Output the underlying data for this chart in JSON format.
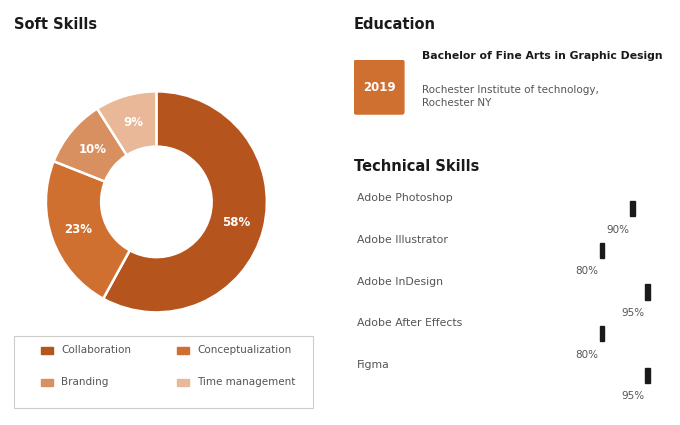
{
  "soft_skills_title": "Soft Skills",
  "donut_values": [
    58,
    23,
    10,
    9
  ],
  "donut_labels": [
    "58%",
    "23%",
    "10%",
    "9%"
  ],
  "donut_colors": [
    "#b5541c",
    "#d07030",
    "#d99060",
    "#e8b898"
  ],
  "legend_labels": [
    "Collaboration",
    "Conceptualization",
    "Branding",
    "Time management"
  ],
  "legend_colors": [
    "#b5541c",
    "#d07030",
    "#d99060",
    "#e8b898"
  ],
  "education_title": "Education",
  "edu_year": "2019",
  "edu_year_bg": "#d07030",
  "edu_degree": "Bachelor of Fine Arts in Graphic Design",
  "edu_institution": "Rochester Institute of technology,\nRochester NY",
  "technical_title": "Technical Skills",
  "tech_skills": [
    "Adobe Photoshop",
    "Adobe Illustrator",
    "Adobe InDesign",
    "Adobe After Effects",
    "Figma"
  ],
  "tech_values": [
    90,
    80,
    95,
    80,
    95
  ],
  "bar_color": "#c96820",
  "marker_color": "#1a1a1a",
  "bg_color": "#ffffff",
  "text_dark": "#1a1a1a",
  "text_mid": "#555555"
}
